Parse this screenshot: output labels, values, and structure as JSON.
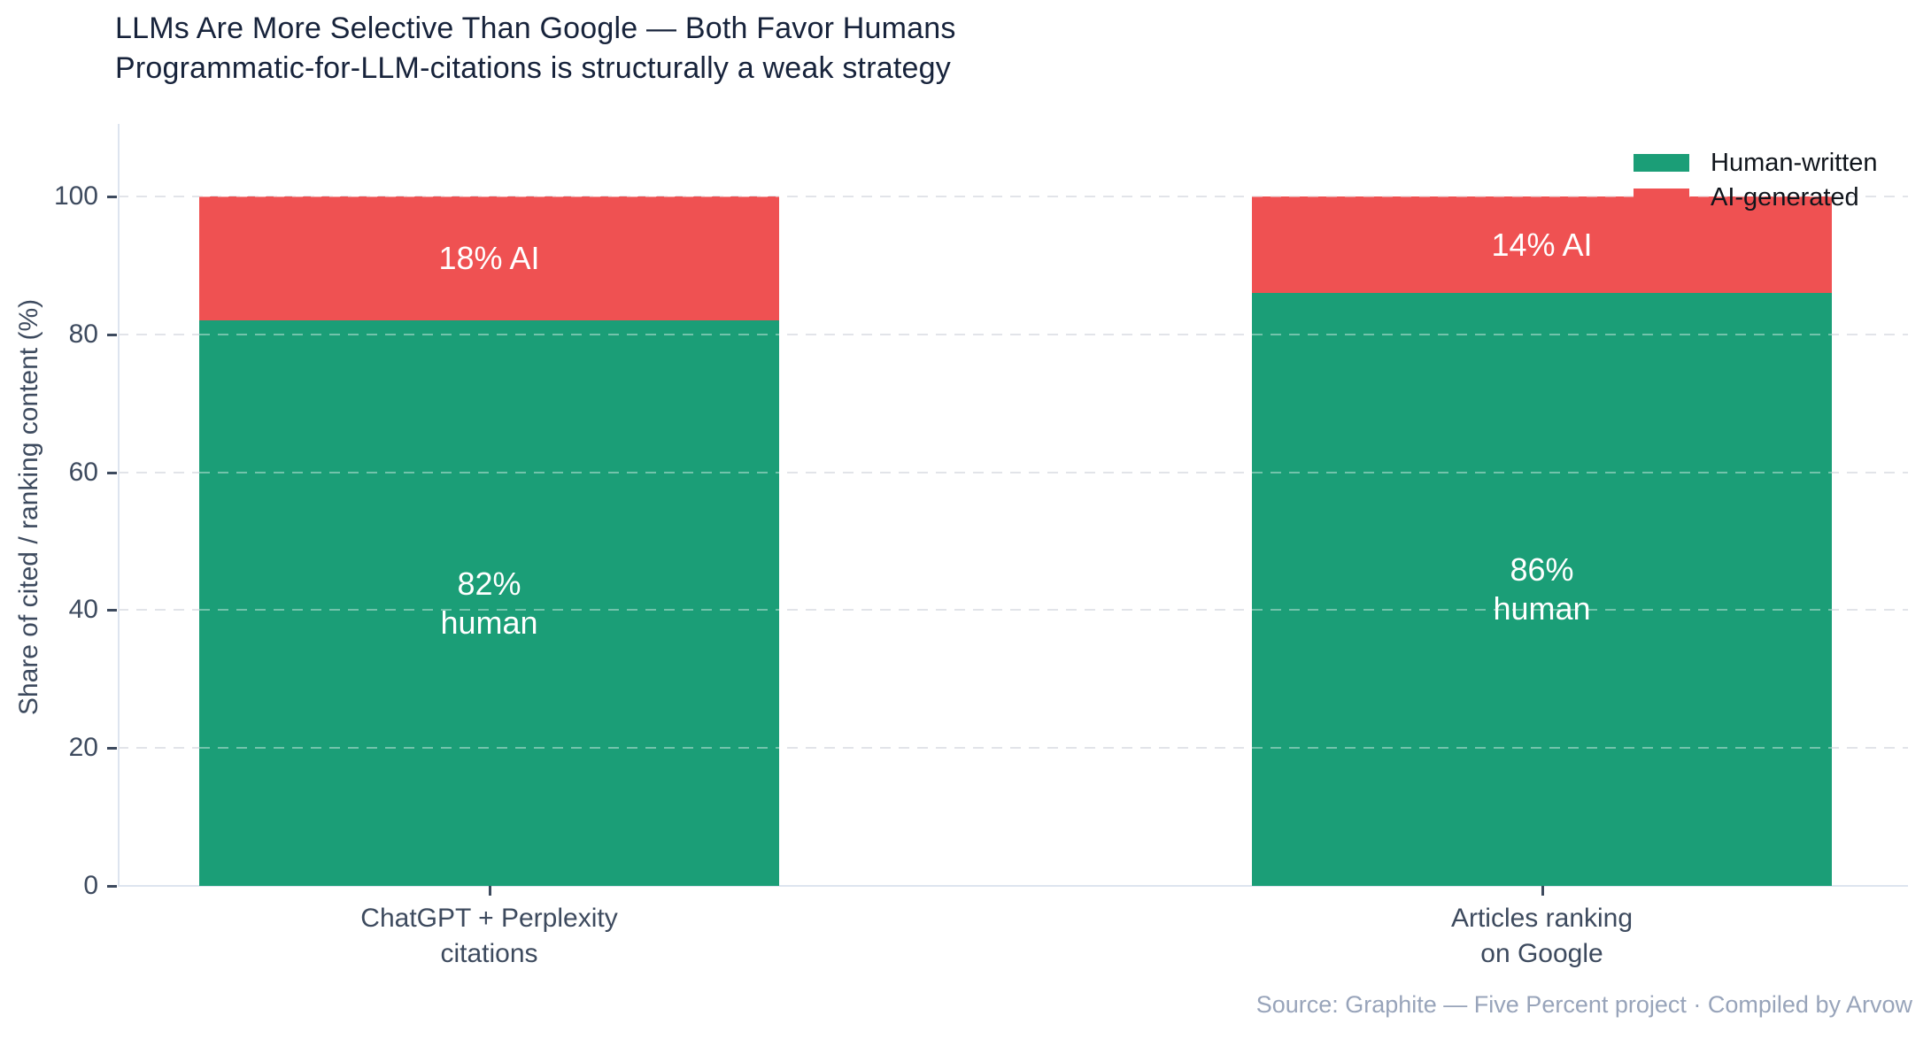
{
  "title": {
    "line1": "LLMs Are More Selective Than Google — Both Favor Humans",
    "line2": "Programmatic-for-LLM-citations is structurally a weak strategy"
  },
  "y_axis": {
    "title": "Share of cited / ranking content (%)"
  },
  "legend": {
    "items": [
      {
        "label": "Human-written",
        "color": "#1b9e77"
      },
      {
        "label": "AI-generated",
        "color": "#ef5152"
      }
    ]
  },
  "source": "Source: Graphite — Five Percent project · Compiled by Arvow",
  "chart_data": {
    "type": "bar",
    "stacked": true,
    "title": "LLMs Are More Selective Than Google — Both Favor Humans",
    "subtitle": "Programmatic-for-LLM-citations is structurally a weak strategy",
    "xlabel": "",
    "ylabel": "Share of cited / ranking content (%)",
    "ylim": [
      0,
      100
    ],
    "y_ticks": [
      0,
      20,
      40,
      60,
      80,
      100
    ],
    "grid": "dashed horizontal",
    "legend_position": "top-right",
    "categories": [
      [
        "ChatGPT + Perplexity",
        "citations"
      ],
      [
        "Articles ranking",
        "on Google"
      ]
    ],
    "series": [
      {
        "name": "Human-written",
        "color": "#1b9e77",
        "values": [
          82,
          86
        ],
        "bar_labels": [
          [
            "82%",
            "human"
          ],
          [
            "86%",
            "human"
          ]
        ]
      },
      {
        "name": "AI-generated",
        "color": "#ef5152",
        "values": [
          18,
          14
        ],
        "bar_labels": [
          [
            "18% AI"
          ],
          [
            "14% AI"
          ]
        ]
      }
    ]
  }
}
